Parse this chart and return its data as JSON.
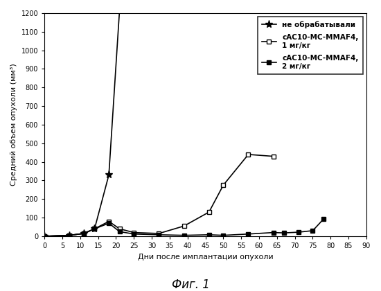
{
  "title": "Фиг. 1",
  "ylabel": "Средний объем опухоли (мм³)",
  "xlabel": "Дни после имплантации опухоли",
  "xlim": [
    0,
    90
  ],
  "ylim": [
    0,
    1200
  ],
  "yticks": [
    0,
    100,
    200,
    300,
    400,
    500,
    600,
    700,
    800,
    900,
    1000,
    1100,
    1200
  ],
  "xticks": [
    0,
    5,
    10,
    15,
    20,
    25,
    30,
    35,
    40,
    45,
    50,
    55,
    60,
    65,
    70,
    75,
    80,
    85,
    90
  ],
  "series": [
    {
      "label": "не обрабатывали",
      "x": [
        0,
        7,
        11,
        14,
        18,
        21
      ],
      "y": [
        0,
        5,
        15,
        40,
        330,
        1220
      ],
      "color": "#000000",
      "marker": "*",
      "linestyle": "-",
      "linewidth": 1.2,
      "markersize": 8
    },
    {
      "label": "cAC10-MC-MMAF4,\n1 мг/кг",
      "x": [
        0,
        7,
        11,
        14,
        18,
        21,
        25,
        32,
        39,
        46,
        50,
        57,
        64
      ],
      "y": [
        0,
        5,
        15,
        40,
        80,
        40,
        20,
        15,
        55,
        130,
        275,
        440,
        430
      ],
      "color": "#000000",
      "marker": "s",
      "linestyle": "-",
      "linewidth": 1.2,
      "markersize": 5,
      "markerfacecolor": "white",
      "markeredgecolor": "#000000"
    },
    {
      "label": "cAC10-MC-MMAF4,\n2 мг/кг",
      "x": [
        0,
        7,
        11,
        14,
        18,
        21,
        25,
        32,
        39,
        46,
        50,
        57,
        64,
        67,
        71,
        75,
        78
      ],
      "y": [
        0,
        5,
        15,
        40,
        70,
        25,
        12,
        8,
        5,
        8,
        5,
        12,
        20,
        18,
        22,
        30,
        92
      ],
      "color": "#000000",
      "marker": "s",
      "linestyle": "-",
      "linewidth": 1.2,
      "markersize": 5,
      "markerfacecolor": "#000000",
      "markeredgecolor": "#000000"
    }
  ],
  "background_color": "#ffffff",
  "fig_title_fontsize": 12,
  "axis_label_fontsize": 8,
  "tick_fontsize": 7,
  "legend_fontsize": 7.5
}
